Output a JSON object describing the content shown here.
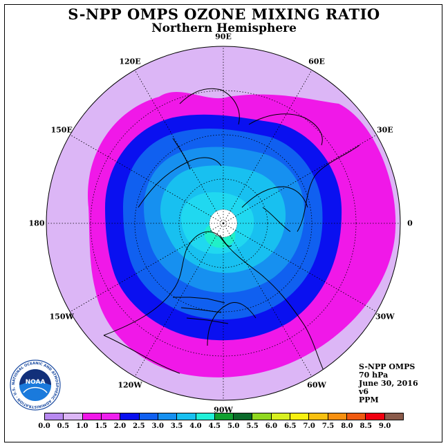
{
  "header": {
    "title": "S-NPP OMPS OZONE MIXING RATIO",
    "subtitle": "Northern Hemisphere"
  },
  "longitude_labels": [
    {
      "text": "90E",
      "lon": 90
    },
    {
      "text": "60E",
      "lon": 60
    },
    {
      "text": "30E",
      "lon": 30
    },
    {
      "text": "0",
      "lon": 0
    },
    {
      "text": "30W",
      "lon": -30
    },
    {
      "text": "60W",
      "lon": -60
    },
    {
      "text": "90W",
      "lon": -90
    },
    {
      "text": "120W",
      "lon": -120
    },
    {
      "text": "150W",
      "lon": -150
    },
    {
      "text": "180",
      "lon": 180
    },
    {
      "text": "150E",
      "lon": 150
    },
    {
      "text": "120E",
      "lon": 120
    }
  ],
  "info": {
    "instrument": "S-NPP OMPS",
    "level": "70 hPa",
    "date": "June 30, 2016",
    "version": "v6",
    "unit": "PPM"
  },
  "colorbar": {
    "colors": [
      "#b889f0",
      "#dcb6f6",
      "#f018e8",
      "#ee20ee",
      "#0a10f0",
      "#1060f0",
      "#1690f0",
      "#18c0f0",
      "#20f0d8",
      "#10a030",
      "#0a6a2a",
      "#90d820",
      "#d8f020",
      "#f8f010",
      "#f8c010",
      "#f89010",
      "#f05a10",
      "#f00010",
      "#8a5a4a"
    ],
    "ticks": [
      "0.0",
      "0.5",
      "1.0",
      "1.5",
      "2.0",
      "2.5",
      "3.0",
      "3.5",
      "4.0",
      "4.5",
      "5.0",
      "5.5",
      "6.0",
      "6.5",
      "7.0",
      "7.5",
      "8.0",
      "8.5",
      "9.0"
    ]
  },
  "logo": {
    "text": "NOAA",
    "ring_text": "NATIONAL OCEANIC AND ATMOSPHERIC ADMINISTRATION · U.S. DEPARTMENT OF COMMERCE"
  },
  "field": {
    "levels_ppm": [
      0.5,
      1.0,
      1.5,
      2.0,
      2.5,
      3.0,
      3.5,
      4.0
    ],
    "colors": {
      "v05": "#dcb6f6",
      "v10": "#f018e8",
      "v15": "#0a10f0",
      "v20": "#1060f0",
      "v25": "#1690f0",
      "v30": "#18c0f0",
      "v35": "#20d8f0",
      "v40": "#20f0c8",
      "nodata": "#ffffff"
    }
  }
}
